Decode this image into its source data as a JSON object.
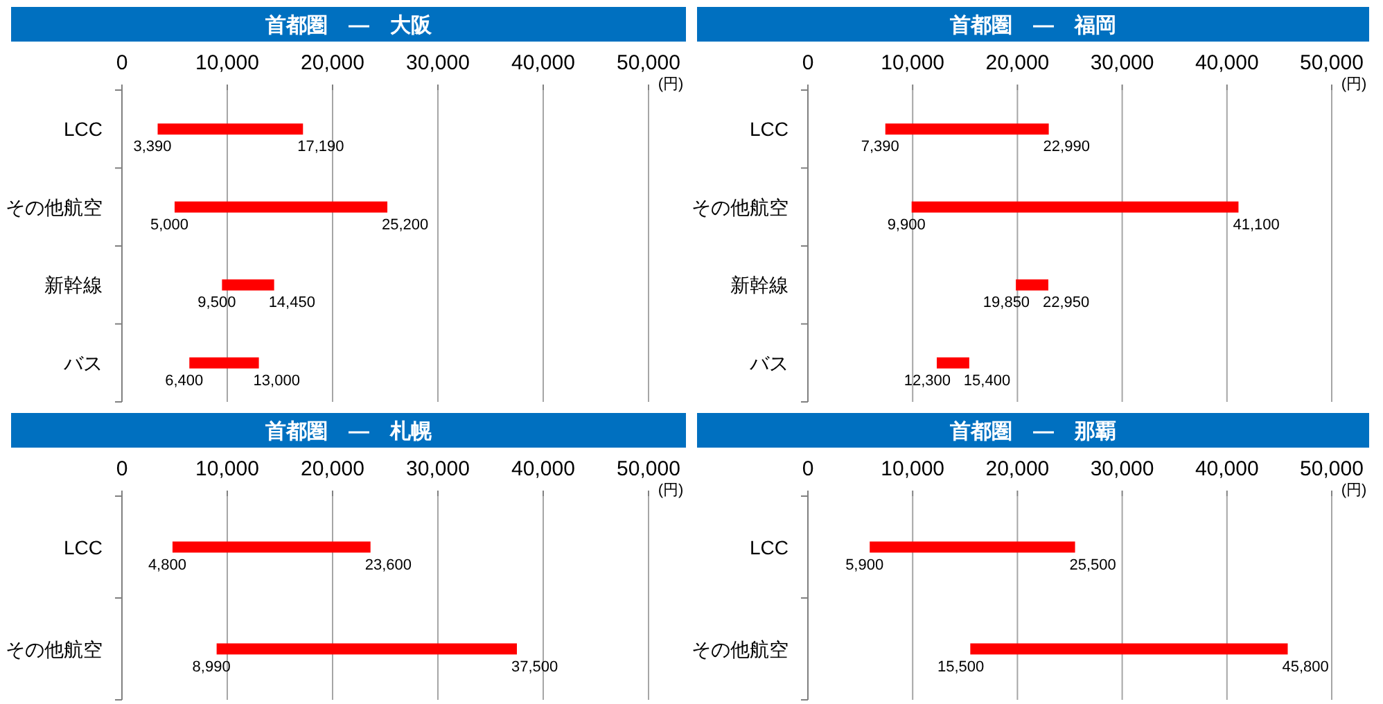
{
  "chart_data": [
    {
      "type": "bar",
      "orientation": "horizontal",
      "title": "首都圏　―　大阪",
      "xlabel": "(円)",
      "color": "#ff0000",
      "grid": "x",
      "categories": [
        "LCC",
        "その他航空",
        "新幹線",
        "バス"
      ],
      "base": [
        3390,
        5000,
        9500,
        6400
      ],
      "values": [
        13800,
        20200,
        4950,
        6600
      ],
      "xlim": [
        0,
        50000
      ],
      "xticks": [
        {
          "value": 0,
          "label": "0"
        },
        {
          "value": 10000,
          "label": "10,000"
        },
        {
          "value": 20000,
          "label": "20,000"
        },
        {
          "value": 30000,
          "label": "30,000"
        },
        {
          "value": 40000,
          "label": "40,000"
        },
        {
          "value": 50000,
          "label": "50,000"
        }
      ],
      "annotations": [
        {
          "text": "3,390",
          "x": 3390,
          "y": "LCC"
        },
        {
          "text": "17,190",
          "x": 17190,
          "y": "LCC"
        },
        {
          "text": "5,000",
          "x": 5000,
          "y": "その他航空"
        },
        {
          "text": "25,200",
          "x": 25200,
          "y": "その他航空"
        },
        {
          "text": "9,500",
          "x": 9500,
          "y": "新幹線"
        },
        {
          "text": "14,450",
          "x": 14450,
          "y": "新幹線"
        },
        {
          "text": "6,400",
          "x": 6400,
          "y": "バス"
        },
        {
          "text": "13,000",
          "x": 13000,
          "y": "バス"
        }
      ]
    },
    {
      "type": "bar",
      "orientation": "horizontal",
      "title": "首都圏　―　福岡",
      "xlabel": "(円)",
      "color": "#ff0000",
      "grid": "x",
      "categories": [
        "LCC",
        "その他航空",
        "新幹線",
        "バス"
      ],
      "base": [
        7390,
        9900,
        19850,
        12300
      ],
      "values": [
        15600,
        31200,
        3100,
        3100
      ],
      "xlim": [
        0,
        50000
      ],
      "xticks": [
        {
          "value": 0,
          "label": "0"
        },
        {
          "value": 10000,
          "label": "10,000"
        },
        {
          "value": 20000,
          "label": "20,000"
        },
        {
          "value": 30000,
          "label": "30,000"
        },
        {
          "value": 40000,
          "label": "40,000"
        },
        {
          "value": 50000,
          "label": "50,000"
        }
      ],
      "annotations": [
        {
          "text": "7,390",
          "x": 7390,
          "y": "LCC"
        },
        {
          "text": "22,990",
          "x": 22990,
          "y": "LCC"
        },
        {
          "text": "9,900",
          "x": 9900,
          "y": "その他航空"
        },
        {
          "text": "41,100",
          "x": 41100,
          "y": "その他航空"
        },
        {
          "text": "19,850",
          "x": 19850,
          "y": "新幹線"
        },
        {
          "text": "22,950",
          "x": 22950,
          "y": "新幹線"
        },
        {
          "text": "12,300",
          "x": 12300,
          "y": "バス"
        },
        {
          "text": "15,400",
          "x": 15400,
          "y": "バス"
        }
      ]
    },
    {
      "type": "bar",
      "orientation": "horizontal",
      "title": "首都圏　―　札幌",
      "xlabel": "(円)",
      "color": "#ff0000",
      "grid": "x",
      "categories": [
        "LCC",
        "その他航空"
      ],
      "base": [
        4800,
        8990
      ],
      "values": [
        18800,
        28510
      ],
      "xlim": [
        0,
        50000
      ],
      "xticks": [
        {
          "value": 0,
          "label": "0"
        },
        {
          "value": 10000,
          "label": "10,000"
        },
        {
          "value": 20000,
          "label": "20,000"
        },
        {
          "value": 30000,
          "label": "30,000"
        },
        {
          "value": 40000,
          "label": "40,000"
        },
        {
          "value": 50000,
          "label": "50,000"
        }
      ],
      "annotations": [
        {
          "text": "4,800",
          "x": 4800,
          "y": "LCC"
        },
        {
          "text": "23,600",
          "x": 23600,
          "y": "LCC"
        },
        {
          "text": "8,990",
          "x": 8990,
          "y": "その他航空"
        },
        {
          "text": "37,500",
          "x": 37500,
          "y": "その他航空"
        }
      ]
    },
    {
      "type": "bar",
      "orientation": "horizontal",
      "title": "首都圏　―　那覇",
      "xlabel": "(円)",
      "color": "#ff0000",
      "grid": "x",
      "categories": [
        "LCC",
        "その他航空"
      ],
      "base": [
        5900,
        15500
      ],
      "values": [
        19600,
        30300
      ],
      "xlim": [
        0,
        50000
      ],
      "xticks": [
        {
          "value": 0,
          "label": "0"
        },
        {
          "value": 10000,
          "label": "10,000"
        },
        {
          "value": 20000,
          "label": "20,000"
        },
        {
          "value": 30000,
          "label": "30,000"
        },
        {
          "value": 40000,
          "label": "40,000"
        },
        {
          "value": 50000,
          "label": "50,000"
        }
      ],
      "annotations": [
        {
          "text": "5,900",
          "x": 5900,
          "y": "LCC"
        },
        {
          "text": "25,500",
          "x": 25500,
          "y": "LCC"
        },
        {
          "text": "15,500",
          "x": 15500,
          "y": "その他航空"
        },
        {
          "text": "45,800",
          "x": 45800,
          "y": "その他航空"
        }
      ]
    }
  ]
}
